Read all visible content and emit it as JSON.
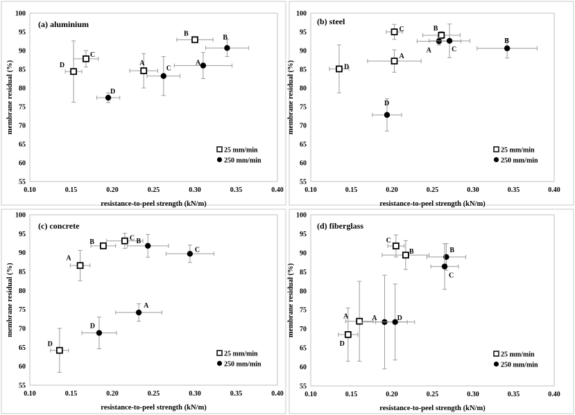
{
  "chart_data": [
    {
      "type": "scatter",
      "title": "(a) aluminium",
      "xlabel": "resistance-to-peel strength (kN/m)",
      "ylabel": "membrane residual (%)",
      "xlim": [
        0.1,
        0.4
      ],
      "ylim": [
        55,
        100
      ],
      "xticks": [
        "0.10",
        "0.15",
        "0.20",
        "0.25",
        "0.30",
        "0.35",
        "0.40"
      ],
      "yticks": [
        "55",
        "60",
        "65",
        "70",
        "75",
        "80",
        "85",
        "90",
        "95",
        "100"
      ],
      "legend_placement": "bottom-right",
      "series": [
        {
          "name": "25 mm/min",
          "marker": "open-square",
          "points": [
            {
              "label": "A",
              "x": 0.238,
              "y": 84.6,
              "xerr": 0.017,
              "yerr": 4.6
            },
            {
              "label": "B",
              "x": 0.3,
              "y": 92.9,
              "xerr": 0.022,
              "yerr": 0
            },
            {
              "label": "C",
              "x": 0.168,
              "y": 87.8,
              "xerr": 0.015,
              "yerr": 2.2
            },
            {
              "label": "D",
              "x": 0.153,
              "y": 84.4,
              "xerr": 0.01,
              "yerr": 8.2
            }
          ]
        },
        {
          "name": "250 mm/min",
          "marker": "filled-circle",
          "points": [
            {
              "label": "A",
              "x": 0.31,
              "y": 86.0,
              "xerr": 0.035,
              "yerr": 3.5
            },
            {
              "label": "B",
              "x": 0.339,
              "y": 90.7,
              "xerr": 0.026,
              "yerr": 2.3
            },
            {
              "label": "C",
              "x": 0.262,
              "y": 83.2,
              "xerr": 0.02,
              "yerr": 5.2
            },
            {
              "label": "D",
              "x": 0.195,
              "y": 77.4,
              "xerr": 0.014,
              "yerr": 1.3
            }
          ]
        }
      ]
    },
    {
      "type": "scatter",
      "title": "(b) steel",
      "xlabel": "resistance-to-peel strength (kN/m)",
      "ylabel": "membrane residual (%)",
      "xlim": [
        0.1,
        0.4
      ],
      "ylim": [
        55,
        100
      ],
      "xticks": [
        "0.10",
        "0.15",
        "0.20",
        "0.25",
        "0.30",
        "0.35",
        "0.40"
      ],
      "yticks": [
        "55",
        "60",
        "65",
        "70",
        "75",
        "80",
        "85",
        "90",
        "95",
        "100"
      ],
      "legend_placement": "bottom-right",
      "series": [
        {
          "name": "25 mm/min",
          "marker": "open-square",
          "points": [
            {
              "label": "A",
              "x": 0.203,
              "y": 87.2,
              "xerr": 0.033,
              "yerr": 3.0
            },
            {
              "label": "B",
              "x": 0.261,
              "y": 94.1,
              "xerr": 0.023,
              "yerr": 1.0
            },
            {
              "label": "C",
              "x": 0.203,
              "y": 95.0,
              "xerr": 0.01,
              "yerr": 2.0
            },
            {
              "label": "D",
              "x": 0.135,
              "y": 85.1,
              "xerr": 0.012,
              "yerr": 6.4
            }
          ]
        },
        {
          "name": "250 mm/min",
          "marker": "filled-circle",
          "points": [
            {
              "label": "A",
              "x": 0.258,
              "y": 92.5,
              "xerr": 0.027,
              "yerr": 1.0
            },
            {
              "label": "B",
              "x": 0.342,
              "y": 90.6,
              "xerr": 0.037,
              "yerr": 2.6
            },
            {
              "label": "C",
              "x": 0.271,
              "y": 92.6,
              "xerr": 0.025,
              "yerr": 4.5
            },
            {
              "label": "D",
              "x": 0.194,
              "y": 72.8,
              "xerr": 0.018,
              "yerr": 4.3
            }
          ]
        }
      ]
    },
    {
      "type": "scatter",
      "title": "(c) concrete",
      "xlabel": "resistance-to-peel strength (kN/m)",
      "ylabel": "membrane residual (%)",
      "xlim": [
        0.1,
        0.4
      ],
      "ylim": [
        55,
        100
      ],
      "xticks": [
        "0.10",
        "0.15",
        "0.20",
        "0.25",
        "0.30",
        "0.35",
        "0.40"
      ],
      "yticks": [
        "55",
        "60",
        "65",
        "70",
        "75",
        "80",
        "85",
        "90",
        "95",
        "100"
      ],
      "legend_placement": "bottom-right",
      "series": [
        {
          "name": "25 mm/min",
          "marker": "open-square",
          "points": [
            {
              "label": "A",
              "x": 0.161,
              "y": 86.6,
              "xerr": 0.012,
              "yerr": 4.0
            },
            {
              "label": "B",
              "x": 0.189,
              "y": 91.8,
              "xerr": 0.015,
              "yerr": 0.8
            },
            {
              "label": "C",
              "x": 0.215,
              "y": 93.1,
              "xerr": 0.022,
              "yerr": 2.0
            },
            {
              "label": "D",
              "x": 0.136,
              "y": 64.2,
              "xerr": 0.011,
              "yerr": 5.8
            }
          ]
        },
        {
          "name": "250 mm/min",
          "marker": "filled-circle",
          "points": [
            {
              "label": "A",
              "x": 0.232,
              "y": 74.2,
              "xerr": 0.028,
              "yerr": 2.3
            },
            {
              "label": "B",
              "x": 0.243,
              "y": 91.8,
              "xerr": 0.025,
              "yerr": 3.0
            },
            {
              "label": "C",
              "x": 0.294,
              "y": 89.7,
              "xerr": 0.029,
              "yerr": 2.3
            },
            {
              "label": "D",
              "x": 0.184,
              "y": 68.8,
              "xerr": 0.021,
              "yerr": 4.2
            }
          ]
        }
      ]
    },
    {
      "type": "scatter",
      "title": "(d) fiberglass",
      "xlabel": "resistance-to-peel strength (kN/m)",
      "ylabel": "membrane residual (%)",
      "xlim": [
        0.1,
        0.4
      ],
      "ylim": [
        55,
        100
      ],
      "xticks": [
        "0.10",
        "0.15",
        "0.20",
        "0.25",
        "0.30",
        "0.35",
        "0.40"
      ],
      "yticks": [
        "55",
        "60",
        "65",
        "70",
        "75",
        "80",
        "85",
        "90",
        "95",
        "100"
      ],
      "legend_placement": "bottom-right",
      "series": [
        {
          "name": "25 mm/min",
          "marker": "open-square",
          "points": [
            {
              "label": "A",
              "x": 0.16,
              "y": 72.0,
              "xerr": 0.017,
              "yerr": 10.5
            },
            {
              "label": "B",
              "x": 0.217,
              "y": 89.4,
              "xerr": 0.029,
              "yerr": 3.8
            },
            {
              "label": "C",
              "x": 0.205,
              "y": 91.8,
              "xerr": 0.01,
              "yerr": 2.9
            },
            {
              "label": "D",
              "x": 0.146,
              "y": 68.5,
              "xerr": 0.012,
              "yerr": 7.0
            }
          ]
        },
        {
          "name": "250 mm/min",
          "marker": "filled-circle",
          "points": [
            {
              "label": "A",
              "x": 0.191,
              "y": 71.8,
              "xerr": 0.028,
              "yerr": 12.3
            },
            {
              "label": "B",
              "x": 0.267,
              "y": 88.9,
              "xerr": 0.024,
              "yerr": 3.5
            },
            {
              "label": "C",
              "x": 0.265,
              "y": 86.4,
              "xerr": 0.017,
              "yerr": 6.0
            },
            {
              "label": "D",
              "x": 0.204,
              "y": 71.8,
              "xerr": 0.024,
              "yerr": 10.0
            }
          ]
        }
      ]
    }
  ]
}
